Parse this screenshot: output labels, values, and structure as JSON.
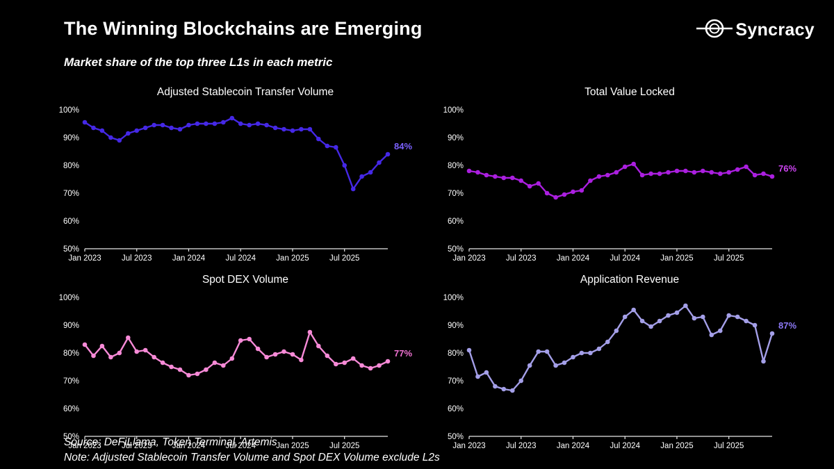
{
  "page": {
    "title": "The Winning Blockchains are Emerging",
    "subtitle": "Market share of the top three L1s in each metric",
    "logo_text": "Syncracy",
    "source_line": "Source: DeFiLlama, Token Terminal, Artemis",
    "note_line": "Note: Adjusted Stablecoin Transfer Volume and Spot DEX Volume exclude L2s"
  },
  "axis": {
    "y_tick_labels": [
      "100%",
      "90%",
      "80%",
      "70%",
      "60%",
      "50%"
    ],
    "x_tick_labels": [
      "Jan 2023",
      "Jul 2023",
      "Jan 2024",
      "Jul 2024",
      "Jan 2025",
      "Jul 2025"
    ],
    "x_tick_month_indices": [
      0,
      6,
      12,
      18,
      24,
      30
    ]
  },
  "chart_data": [
    {
      "type": "line",
      "title": "Adjusted Stablecoin Transfer Volume",
      "color": "#4528e6",
      "label_color": "#7b61ff",
      "end_label": "84%",
      "ylim": [
        50,
        100
      ],
      "x_start": "Jan 2023",
      "values": [
        95.5,
        93.5,
        92.5,
        90,
        89,
        91.5,
        92.5,
        93.5,
        94.5,
        94.5,
        93.5,
        93,
        94.5,
        95,
        95,
        95,
        95.5,
        97,
        95,
        94.5,
        95,
        94.5,
        93.5,
        93,
        92.5,
        93,
        93,
        89.5,
        87,
        86.5,
        80,
        71.5,
        76,
        77.5,
        81,
        84
      ]
    },
    {
      "type": "line",
      "title": "Total Value Locked",
      "color": "#ab1fe0",
      "label_color": "#cc44f0",
      "end_label": "76%",
      "ylim": [
        50,
        100
      ],
      "x_start": "Jan 2023",
      "values": [
        78,
        77.5,
        76.5,
        76,
        75.5,
        75.5,
        74.5,
        72.5,
        73.5,
        70,
        68.5,
        69.5,
        70.5,
        71,
        74.5,
        76,
        76.5,
        77.5,
        79.5,
        80.5,
        76.5,
        77,
        77,
        77.5,
        78,
        78,
        77.5,
        78,
        77.5,
        77,
        77.5,
        78.5,
        79.5,
        76.5,
        77,
        76
      ]
    },
    {
      "type": "line",
      "title": "Spot DEX Volume",
      "color": "#f78ad7",
      "label_color": "#f072d2",
      "end_label": "77%",
      "ylim": [
        50,
        100
      ],
      "x_start": "Jan 2023",
      "values": [
        83,
        79,
        82.5,
        78.5,
        80,
        85.5,
        80.5,
        81,
        78.5,
        76.5,
        75,
        74,
        72,
        72.5,
        74,
        76.5,
        75.5,
        78,
        84.5,
        85,
        81.5,
        78.5,
        79.5,
        80.5,
        79.5,
        77.5,
        87.5,
        82.5,
        79,
        76,
        76.5,
        78,
        75.5,
        74.5,
        75.5,
        77
      ]
    },
    {
      "type": "line",
      "title": "Application Revenue",
      "color": "#a49fe8",
      "label_color": "#8d79f6",
      "end_label": "87%",
      "ylim": [
        50,
        100
      ],
      "x_start": "Jan 2023",
      "values": [
        81,
        71.5,
        73,
        68,
        67,
        66.5,
        70,
        75.5,
        80.5,
        80.5,
        75.5,
        76.5,
        78.5,
        80,
        80,
        81.5,
        84,
        88,
        93,
        95.5,
        91.5,
        89.5,
        91.5,
        93.5,
        94.5,
        97,
        92.5,
        93,
        86.5,
        88,
        93.5,
        93,
        91.5,
        90,
        77,
        87
      ]
    }
  ]
}
